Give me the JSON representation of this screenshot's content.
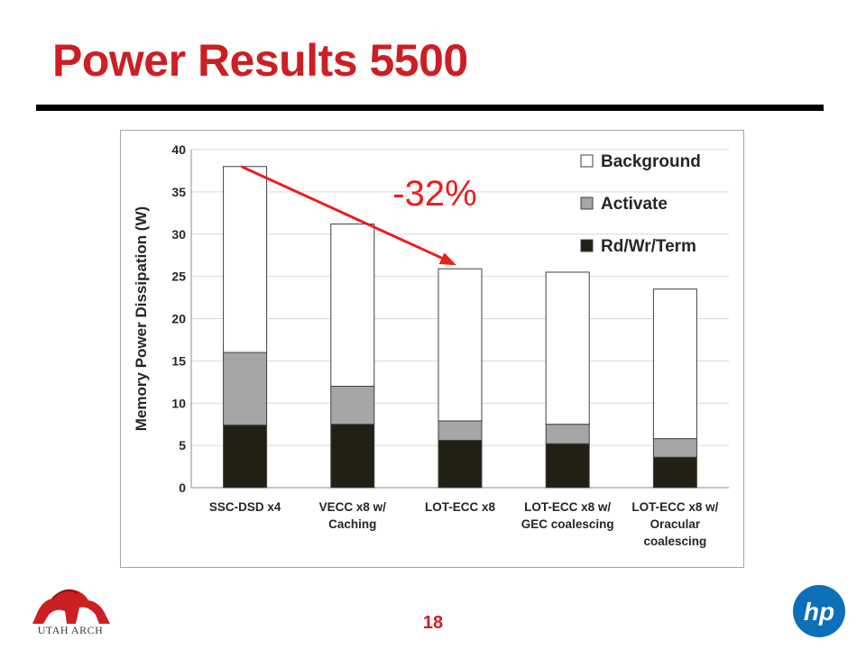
{
  "slide": {
    "title": "Power Results 5500",
    "page_number": "18",
    "left_logo_text": "UTAH ARCH",
    "right_logo_text": "hp"
  },
  "colors": {
    "title": "#cc1f24",
    "background_series": "#ffffff",
    "activate_series": "#a6a6a6",
    "rdwr_series": "#221f14",
    "arrow": "#e8201c",
    "hp_blue": "#0d6fb8"
  },
  "chart_data": {
    "type": "bar",
    "stacked": true,
    "categories": [
      [
        "SSC-DSD x4"
      ],
      [
        "VECC x8 w/",
        "Caching"
      ],
      [
        "LOT-ECC x8"
      ],
      [
        "LOT-ECC x8 w/",
        "GEC coalescing"
      ],
      [
        "LOT-ECC x8 w/",
        "Oracular",
        "coalescing"
      ]
    ],
    "series": [
      {
        "name": "Rd/Wr/Term",
        "values": [
          7.4,
          7.5,
          5.6,
          5.2,
          3.6
        ]
      },
      {
        "name": "Activate",
        "values": [
          8.6,
          4.5,
          2.3,
          2.3,
          2.2
        ]
      },
      {
        "name": "Background",
        "values": [
          22.0,
          19.2,
          18.0,
          18.0,
          17.7
        ]
      }
    ],
    "legend_order": [
      "Background",
      "Activate",
      "Rd/Wr/Term"
    ],
    "ylabel": "Memory Power Dissipation (W)",
    "xlabel": "",
    "ylim": [
      0,
      40
    ],
    "yticks": [
      0,
      5,
      10,
      15,
      20,
      25,
      30,
      35,
      40
    ],
    "grid": true,
    "legend_position": "top-right",
    "annotation": {
      "text": "-32%",
      "from_category": 0,
      "to_category": 2
    }
  }
}
